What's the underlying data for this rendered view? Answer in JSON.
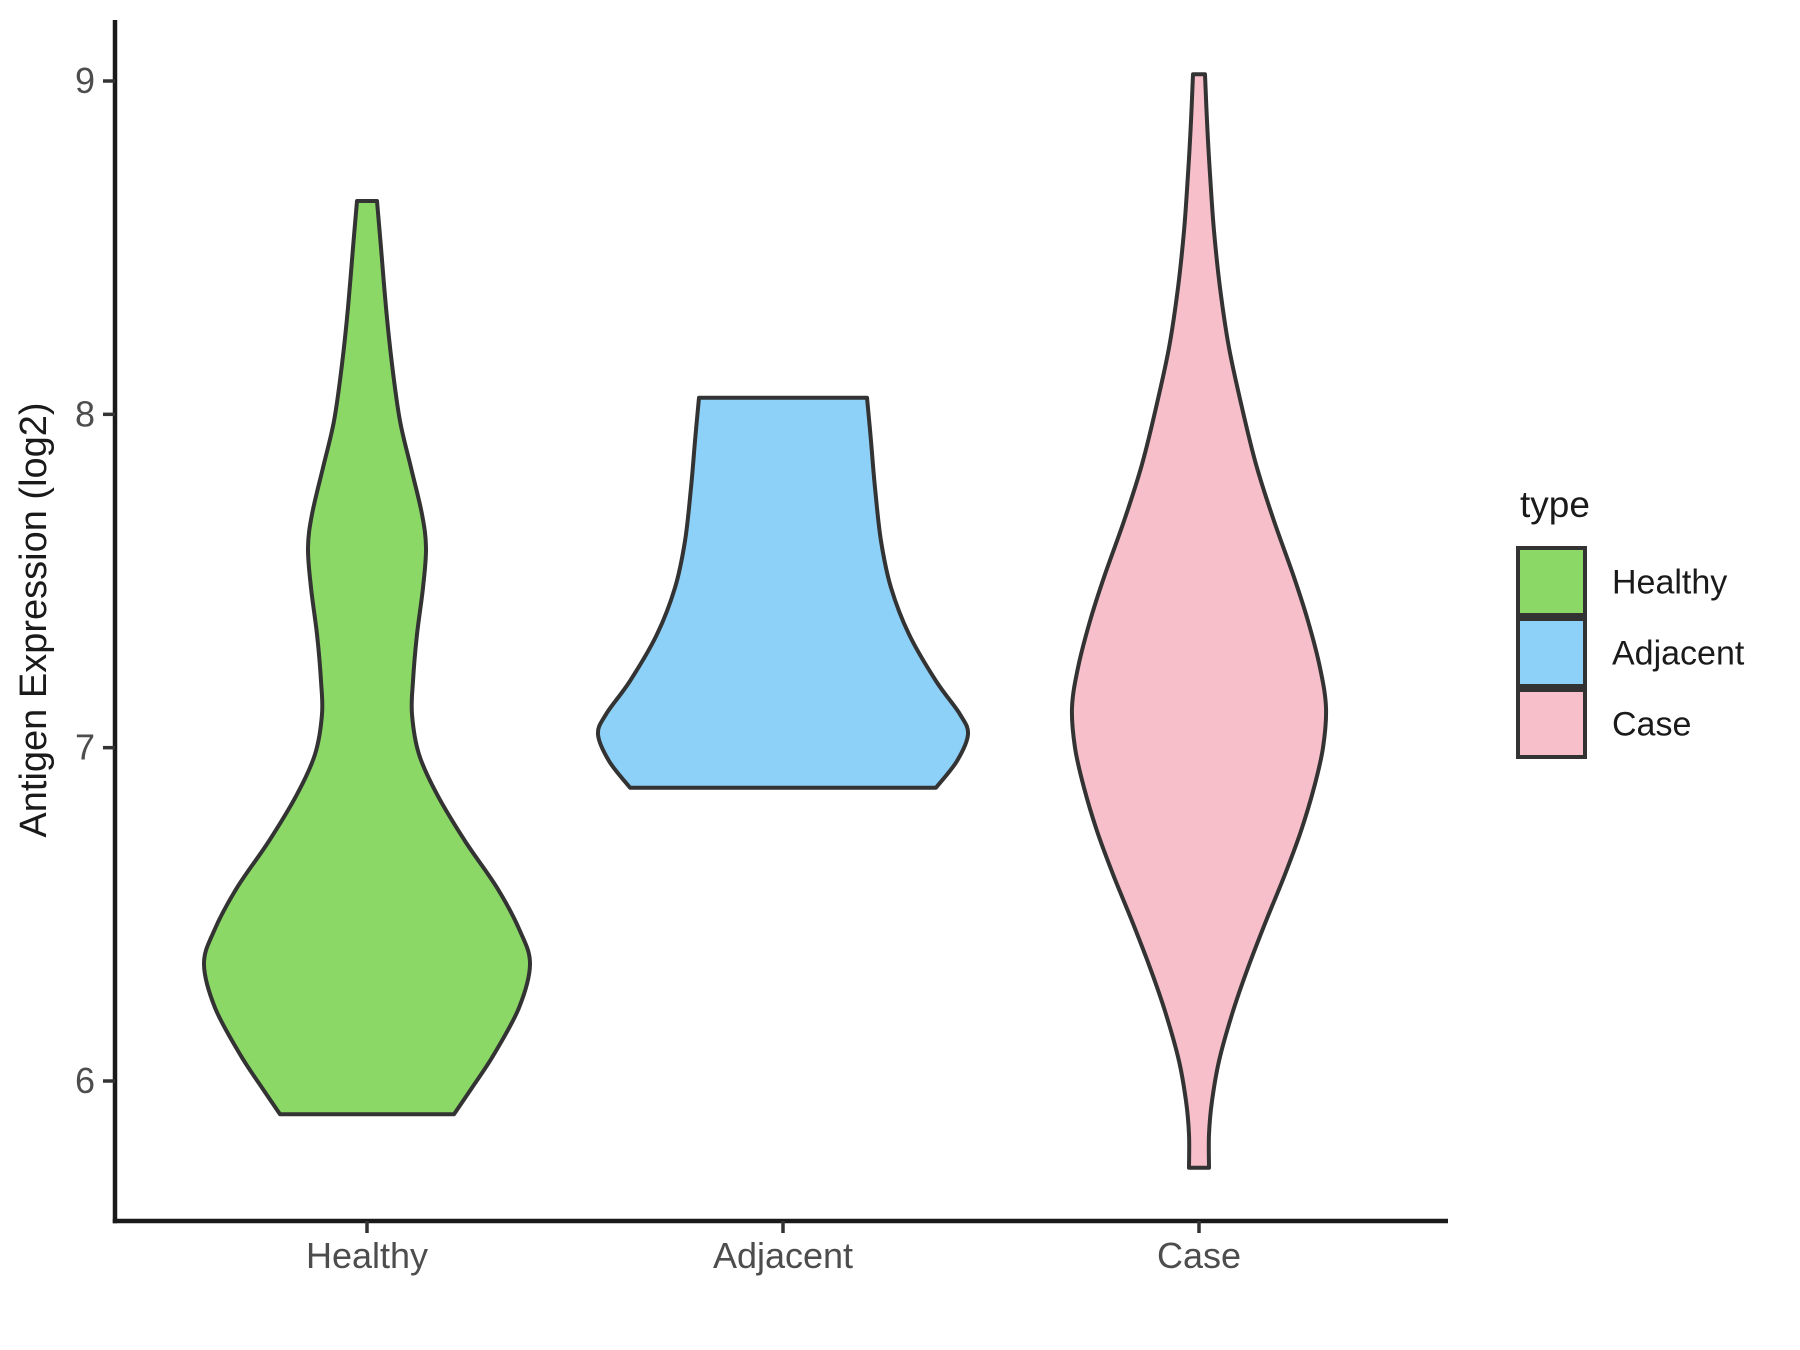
{
  "chart_data": {
    "type": "violin",
    "title": "",
    "xlabel": "",
    "ylabel": "Antigen Expression (log2)",
    "legend_title": "type",
    "categories": [
      "Healthy",
      "Adjacent",
      "Case"
    ],
    "y_ticks": [
      9,
      8,
      7,
      6
    ],
    "ylim": [
      5.58,
      9.18
    ],
    "grid": false,
    "legend_position": "right",
    "series": [
      {
        "name": "Healthy",
        "fill": "#8CD867",
        "value_min": 5.9,
        "value_max": 8.64,
        "profile": [
          [
            8.64,
            10
          ],
          [
            8.5,
            14
          ],
          [
            8.32,
            19
          ],
          [
            8.15,
            25
          ],
          [
            7.98,
            33
          ],
          [
            7.84,
            44
          ],
          [
            7.7,
            55
          ],
          [
            7.6,
            59
          ],
          [
            7.48,
            56
          ],
          [
            7.34,
            50
          ],
          [
            7.2,
            46
          ],
          [
            7.1,
            45
          ],
          [
            6.98,
            52
          ],
          [
            6.86,
            70
          ],
          [
            6.72,
            98
          ],
          [
            6.58,
            130
          ],
          [
            6.45,
            153
          ],
          [
            6.35,
            163
          ],
          [
            6.22,
            152
          ],
          [
            6.08,
            127
          ],
          [
            5.98,
            105
          ],
          [
            5.9,
            87
          ]
        ]
      },
      {
        "name": "Adjacent",
        "fill": "#8DD0F8",
        "value_min": 6.88,
        "value_max": 8.05,
        "profile": [
          [
            8.05,
            84
          ],
          [
            7.92,
            88
          ],
          [
            7.78,
            92
          ],
          [
            7.62,
            98
          ],
          [
            7.48,
            108
          ],
          [
            7.34,
            126
          ],
          [
            7.2,
            153
          ],
          [
            7.1,
            177
          ],
          [
            7.04,
            185
          ],
          [
            6.96,
            174
          ],
          [
            6.88,
            153
          ]
        ]
      },
      {
        "name": "Case",
        "fill": "#F7BFCA",
        "value_min": 5.74,
        "value_max": 9.02,
        "profile": [
          [
            9.02,
            6
          ],
          [
            8.88,
            8
          ],
          [
            8.72,
            11
          ],
          [
            8.55,
            15
          ],
          [
            8.38,
            21
          ],
          [
            8.2,
            30
          ],
          [
            8.02,
            43
          ],
          [
            7.85,
            57
          ],
          [
            7.68,
            75
          ],
          [
            7.52,
            94
          ],
          [
            7.38,
            109
          ],
          [
            7.24,
            121
          ],
          [
            7.12,
            127
          ],
          [
            7.0,
            124
          ],
          [
            6.88,
            115
          ],
          [
            6.75,
            102
          ],
          [
            6.62,
            86
          ],
          [
            6.48,
            67
          ],
          [
            6.34,
            49
          ],
          [
            6.2,
            33
          ],
          [
            6.06,
            20
          ],
          [
            5.94,
            13
          ],
          [
            5.84,
            10
          ],
          [
            5.74,
            10
          ]
        ]
      }
    ]
  },
  "style": {
    "background": "#ffffff",
    "axis_line_color": "#1a1a1a",
    "tick_mark_color": "#333333",
    "tick_label_color": "#4d4d4d",
    "axis_title_color": "#1a1a1a",
    "violin_outline_color": "#333333",
    "legend_text_color": "#1a1a1a"
  }
}
